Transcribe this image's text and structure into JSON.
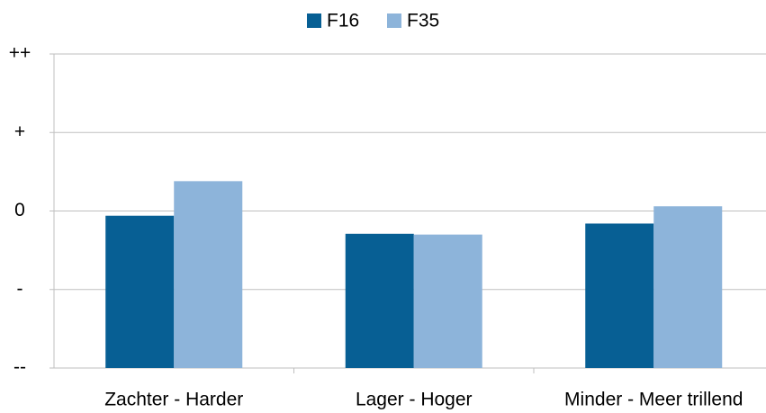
{
  "chart_data": {
    "type": "bar",
    "categories": [
      "Zachter - Harder",
      "Lager - Hoger",
      "Minder - Meer trillend"
    ],
    "series": [
      {
        "name": "F16",
        "color": "#075f94",
        "values": [
          -0.06,
          -0.29,
          -0.16
        ]
      },
      {
        "name": "F35",
        "color": "#8db4da",
        "values": [
          0.38,
          -0.3,
          0.06
        ]
      }
    ],
    "ylim": [
      -2,
      2
    ],
    "yticks": [
      {
        "value": -2,
        "label": "--"
      },
      {
        "value": -1,
        "label": "-"
      },
      0,
      {
        "value": 1,
        "label": "+"
      },
      {
        "value": 2,
        "label": "++"
      }
    ],
    "grid": true,
    "legend": "top"
  }
}
